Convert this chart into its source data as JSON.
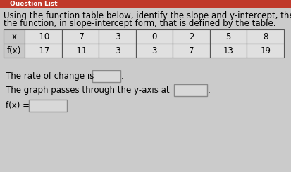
{
  "bg_color": "#cbcbcb",
  "header_bg": "#c0392b",
  "header_text": "Question List",
  "header_text_color": "#ffffff",
  "title_line1": "Using the function table below, identify the slope and y-intercept, then write",
  "title_line2": "the function, in slope-intercept form, that is defined by the table.",
  "table_x_label": "x",
  "table_fx_label": "f(x)",
  "x_values": [
    "-10",
    "-7",
    "-3",
    "0",
    "2",
    "5",
    "8"
  ],
  "fx_values": [
    "-17",
    "-11",
    "-3",
    "3",
    "7",
    "13",
    "19"
  ],
  "line1": "The rate of change is",
  "line2": "The graph passes through the y-axis at",
  "line3": "f(x) =",
  "title_fontsize": 8.5,
  "body_fontsize": 8.5,
  "table_fontsize": 8.5,
  "text_color": "#000000",
  "table_border_color": "#555555",
  "table_header_bg": "#c8c8c8",
  "table_body_bg": "#e0e0e0",
  "answer_box_bg": "#d8d8d8",
  "answer_box_edge": "#888888"
}
